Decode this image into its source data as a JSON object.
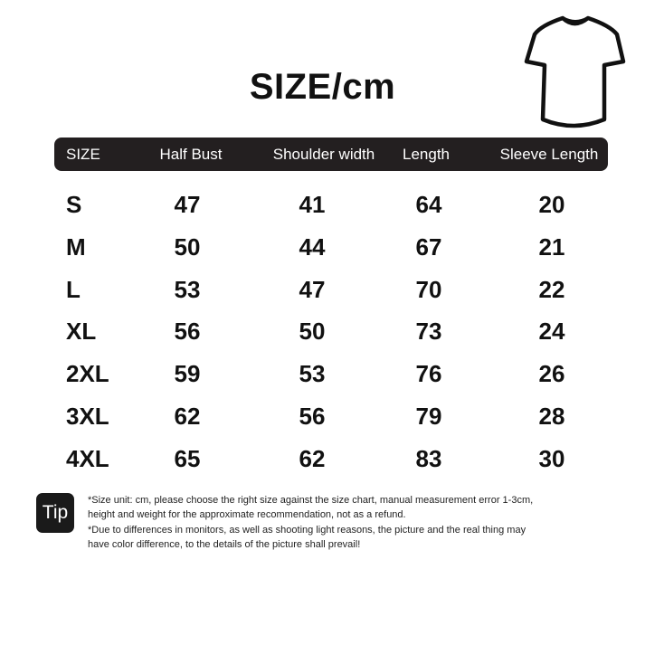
{
  "title": "SIZE/cm",
  "icons": {
    "garment": "tshirt-icon"
  },
  "colors": {
    "header_bg": "#231f20",
    "text": "#111111"
  },
  "table": {
    "headers": [
      "SIZE",
      "Half Bust",
      "Shoulder width",
      "Length",
      "Sleeve Length"
    ],
    "rows": [
      [
        "S",
        "47",
        "41",
        "64",
        "20"
      ],
      [
        "M",
        "50",
        "44",
        "67",
        "21"
      ],
      [
        "L",
        "53",
        "47",
        "70",
        "22"
      ],
      [
        "XL",
        "56",
        "50",
        "73",
        "24"
      ],
      [
        "2XL",
        "59",
        "53",
        "76",
        "26"
      ],
      [
        "3XL",
        "62",
        "56",
        "79",
        "28"
      ],
      [
        "4XL",
        "65",
        "62",
        "83",
        "30"
      ]
    ]
  },
  "tip": {
    "badge": "Tip",
    "lines": [
      "*Size unit: cm, please choose the right size against the size chart, manual measurement error 1-3cm,",
      "height and weight for the approximate recommendation, not as a refund.",
      "*Due to differences in monitors, as well as shooting light reasons, the picture and the real thing may",
      "have color difference, to the details of the picture shall prevail!"
    ]
  }
}
